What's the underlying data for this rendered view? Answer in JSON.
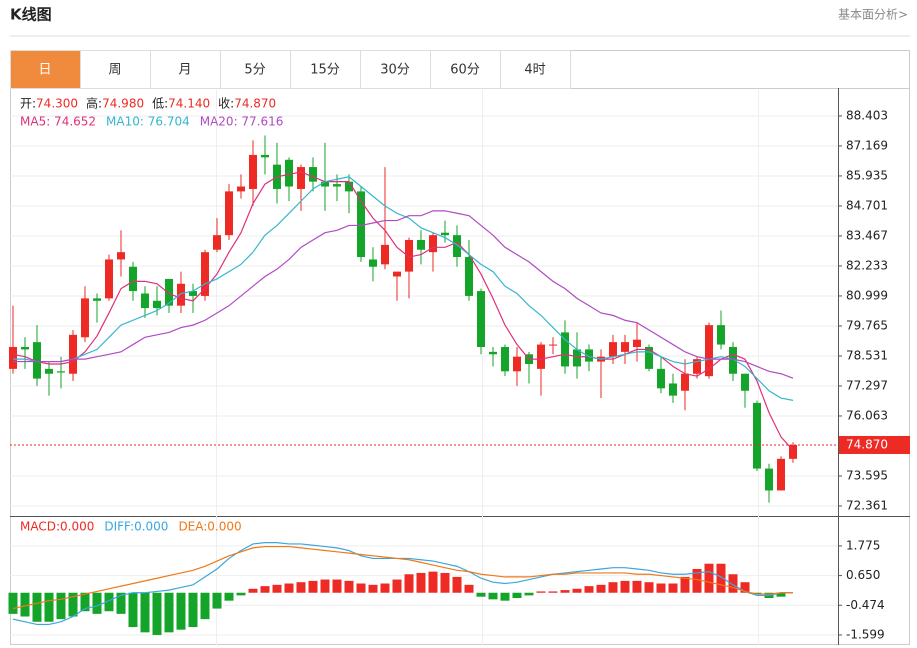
{
  "header": {
    "title": "K线图",
    "link": "基本面分析>"
  },
  "tabs": [
    "日",
    "周",
    "月",
    "5分",
    "15分",
    "30分",
    "60分",
    "4时"
  ],
  "active_tab": 0,
  "chart_data": [
    {
      "type": "candlestick",
      "ohlc_info": [
        {
          "label": "开:",
          "value": "74.300"
        },
        {
          "label": "高:",
          "value": "74.980"
        },
        {
          "label": "低:",
          "value": "74.140"
        },
        {
          "label": "收:",
          "value": "74.870"
        }
      ],
      "up_color": "#ee2a24",
      "down_color": "#14a42a",
      "open": [
        78.0,
        78.9,
        79.1,
        78.0,
        77.9,
        77.8,
        79.3,
        80.9,
        80.9,
        82.5,
        82.2,
        81.1,
        80.8,
        81.7,
        80.6,
        81.2,
        81.0,
        82.9,
        83.5,
        85.3,
        85.4,
        86.8,
        86.4,
        86.6,
        85.4,
        86.3,
        85.7,
        85.6,
        85.7,
        85.3,
        82.5,
        82.3,
        81.8,
        82.0,
        83.3,
        82.8,
        83.6,
        83.5,
        82.6,
        81.2,
        78.7,
        78.9,
        77.9,
        78.6,
        78.0,
        79.0,
        79.5,
        78.8,
        78.8,
        78.3,
        78.5,
        78.7,
        78.9,
        78.9,
        78.0,
        77.4,
        77.1,
        77.8,
        77.7,
        79.8,
        78.9,
        77.8,
        76.6,
        73.9,
        73.0,
        74.3
      ],
      "high": [
        80.6,
        79.3,
        79.8,
        78.3,
        78.5,
        79.6,
        81.4,
        81.1,
        82.7,
        83.7,
        82.4,
        81.4,
        81.4,
        81.7,
        82.0,
        81.5,
        82.9,
        84.2,
        85.6,
        86.0,
        87.4,
        87.6,
        87.3,
        86.7,
        86.4,
        86.7,
        87.3,
        86.0,
        86.0,
        85.5,
        83.0,
        86.3,
        82.0,
        83.4,
        83.7,
        83.6,
        84.1,
        83.9,
        83.3,
        81.3,
        78.9,
        79.0,
        78.9,
        78.7,
        79.1,
        79.3,
        80.0,
        79.5,
        79.0,
        78.8,
        79.4,
        79.4,
        79.9,
        79.0,
        78.5,
        77.8,
        78.4,
        78.5,
        79.9,
        80.4,
        79.1,
        77.8,
        76.7,
        74.1,
        74.4,
        74.98
      ],
      "low": [
        77.8,
        78.0,
        77.3,
        76.9,
        77.2,
        77.5,
        79.1,
        79.9,
        80.8,
        81.8,
        80.8,
        80.1,
        80.2,
        80.3,
        80.3,
        80.3,
        80.8,
        82.8,
        83.3,
        85.0,
        84.7,
        86.0,
        84.8,
        84.9,
        84.5,
        85.3,
        84.5,
        84.9,
        84.4,
        82.4,
        81.6,
        82.1,
        80.8,
        80.9,
        82.3,
        82.0,
        83.2,
        82.2,
        80.8,
        78.6,
        78.1,
        77.7,
        77.3,
        77.4,
        76.9,
        78.6,
        77.8,
        77.6,
        77.9,
        76.8,
        78.2,
        78.2,
        78.3,
        77.9,
        77.0,
        76.6,
        76.3,
        77.6,
        77.6,
        78.8,
        77.5,
        76.4,
        73.8,
        72.5,
        73.0,
        74.14
      ],
      "close": [
        78.9,
        78.8,
        77.6,
        77.8,
        77.85,
        79.4,
        80.9,
        80.8,
        82.5,
        82.8,
        81.2,
        80.5,
        80.5,
        80.6,
        81.5,
        81.0,
        82.8,
        83.5,
        85.3,
        85.5,
        86.8,
        86.7,
        85.4,
        85.5,
        86.3,
        85.7,
        85.5,
        85.5,
        85.3,
        82.6,
        82.2,
        83.1,
        82.0,
        83.3,
        82.9,
        83.5,
        83.5,
        82.6,
        81.0,
        78.9,
        78.6,
        77.9,
        78.5,
        78.2,
        79.0,
        79.0,
        78.1,
        78.1,
        78.3,
        78.5,
        79.1,
        79.1,
        79.2,
        78.0,
        77.2,
        76.9,
        77.8,
        78.4,
        79.8,
        79.0,
        77.8,
        77.1,
        73.9,
        73.0,
        74.3,
        74.87
      ],
      "series": [
        {
          "name": "MA5: 74.652",
          "color": "#e0307a",
          "values": [
            78.6,
            78.5,
            78.3,
            78.2,
            78.2,
            78.3,
            78.7,
            79.35,
            80.3,
            81.3,
            81.6,
            81.6,
            81.5,
            81.1,
            80.9,
            80.8,
            81.3,
            81.9,
            82.8,
            83.6,
            84.8,
            85.6,
            85.9,
            86.0,
            86.1,
            85.9,
            85.7,
            85.7,
            85.7,
            84.9,
            84.2,
            83.7,
            83.0,
            82.6,
            82.7,
            83.0,
            83.0,
            83.2,
            82.7,
            81.9,
            80.9,
            79.8,
            79.0,
            78.4,
            78.4,
            78.5,
            78.6,
            78.5,
            78.5,
            78.4,
            78.4,
            78.6,
            78.8,
            78.8,
            78.5,
            78.1,
            77.8,
            77.7,
            78.0,
            78.4,
            78.6,
            78.4,
            77.5,
            76.2,
            75.2,
            74.652
          ]
        },
        {
          "name": "MA10: 76.704",
          "color": "#34b6cf",
          "values": [
            78.4,
            78.4,
            78.3,
            78.3,
            78.3,
            78.4,
            78.6,
            78.8,
            79.3,
            79.8,
            80.0,
            80.2,
            80.4,
            80.7,
            81.1,
            81.2,
            81.5,
            81.7,
            82.0,
            82.3,
            82.8,
            83.5,
            83.9,
            84.4,
            84.9,
            85.4,
            85.7,
            85.8,
            85.9,
            85.5,
            85.1,
            84.7,
            84.4,
            84.2,
            83.8,
            83.6,
            83.4,
            83.1,
            82.7,
            82.3,
            82.0,
            81.4,
            81.1,
            80.6,
            80.2,
            79.7,
            79.2,
            78.8,
            78.5,
            78.4,
            78.5,
            78.6,
            78.7,
            78.7,
            78.5,
            78.3,
            78.2,
            78.3,
            78.4,
            78.5,
            78.4,
            78.1,
            77.6,
            77.1,
            76.8,
            76.704
          ]
        },
        {
          "name": "MA20: 77.616",
          "color": "#b04ac4",
          "values": [
            78.3,
            78.3,
            78.3,
            78.3,
            78.3,
            78.4,
            78.4,
            78.5,
            78.6,
            78.7,
            79.0,
            79.3,
            79.4,
            79.5,
            79.7,
            79.8,
            80.0,
            80.3,
            80.6,
            81.0,
            81.4,
            81.8,
            82.1,
            82.5,
            83.0,
            83.3,
            83.6,
            83.7,
            83.9,
            83.9,
            84.0,
            84.1,
            84.1,
            84.3,
            84.3,
            84.5,
            84.5,
            84.4,
            84.3,
            83.9,
            83.5,
            83.0,
            82.7,
            82.4,
            82.0,
            81.6,
            81.3,
            80.9,
            80.6,
            80.3,
            80.2,
            80.0,
            79.9,
            79.6,
            79.3,
            79.0,
            78.7,
            78.5,
            78.4,
            78.4,
            78.4,
            78.3,
            78.1,
            77.9,
            77.8,
            77.616
          ]
        }
      ],
      "ylim": [
        71.99,
        89.47
      ],
      "yticks": [
        72.361,
        73.595,
        76.063,
        77.297,
        78.531,
        79.765,
        80.999,
        82.233,
        83.467,
        84.701,
        85.935,
        87.169,
        88.403
      ],
      "last_price": {
        "value": 74.87,
        "label": "74.870"
      },
      "grid": true
    },
    {
      "type": "macd",
      "up_color": "#ee2a24",
      "down_color": "#14a42a",
      "histogram": {
        "name": "MACD:0.000",
        "color": "#ee2a24",
        "values": [
          -0.8,
          -0.9,
          -1.1,
          -1.1,
          -1.0,
          -0.9,
          -0.7,
          -0.8,
          -0.7,
          -0.8,
          -1.3,
          -1.5,
          -1.6,
          -1.5,
          -1.4,
          -1.3,
          -1.0,
          -0.6,
          -0.3,
          -0.1,
          0.15,
          0.25,
          0.3,
          0.35,
          0.4,
          0.45,
          0.5,
          0.5,
          0.45,
          0.35,
          0.3,
          0.35,
          0.5,
          0.7,
          0.75,
          0.8,
          0.75,
          0.6,
          0.3,
          -0.15,
          -0.25,
          -0.3,
          -0.2,
          -0.1,
          0.05,
          0.05,
          0.1,
          0.15,
          0.25,
          0.3,
          0.4,
          0.45,
          0.45,
          0.4,
          0.35,
          0.35,
          0.6,
          0.9,
          1.1,
          1.1,
          0.7,
          0.4,
          -0.05,
          -0.2,
          -0.15,
          0.0
        ]
      },
      "series": [
        {
          "name": "DIFF:0.000",
          "color": "#3aa6e0",
          "values": [
            -1.0,
            -1.1,
            -1.2,
            -1.2,
            -1.1,
            -0.9,
            -0.6,
            -0.5,
            -0.3,
            -0.1,
            0.0,
            0.0,
            0.05,
            0.1,
            0.2,
            0.3,
            0.6,
            0.9,
            1.3,
            1.6,
            1.85,
            1.9,
            1.9,
            1.85,
            1.85,
            1.8,
            1.75,
            1.7,
            1.6,
            1.4,
            1.3,
            1.3,
            1.3,
            1.3,
            1.25,
            1.2,
            1.1,
            1.0,
            0.8,
            0.55,
            0.4,
            0.35,
            0.4,
            0.5,
            0.6,
            0.7,
            0.75,
            0.8,
            0.85,
            0.9,
            0.95,
            0.95,
            0.9,
            0.85,
            0.75,
            0.7,
            0.7,
            0.75,
            0.8,
            0.6,
            0.3,
            0.05,
            -0.1,
            -0.1,
            0.0,
            0.0
          ]
        },
        {
          "name": "DEA:0.000",
          "color": "#f07818",
          "values": [
            -0.6,
            -0.5,
            -0.4,
            -0.3,
            -0.25,
            -0.15,
            -0.05,
            0.05,
            0.15,
            0.25,
            0.35,
            0.45,
            0.55,
            0.65,
            0.75,
            0.85,
            1.0,
            1.2,
            1.4,
            1.55,
            1.7,
            1.75,
            1.75,
            1.75,
            1.7,
            1.65,
            1.6,
            1.55,
            1.5,
            1.45,
            1.4,
            1.35,
            1.3,
            1.25,
            1.15,
            1.05,
            0.95,
            0.85,
            0.8,
            0.7,
            0.65,
            0.6,
            0.6,
            0.6,
            0.65,
            0.7,
            0.7,
            0.75,
            0.75,
            0.75,
            0.75,
            0.75,
            0.7,
            0.7,
            0.65,
            0.6,
            0.55,
            0.5,
            0.4,
            0.3,
            0.2,
            0.05,
            -0.05,
            -0.05,
            0.0,
            0.0
          ]
        }
      ],
      "ylim": [
        -1.98,
        2.87
      ],
      "yticks": [
        {
          "value": -1.599,
          "label": "-1.599"
        },
        {
          "value": -0.474,
          "label": "-0.474"
        },
        {
          "value": 0.65,
          "label": "0.650"
        },
        {
          "value": 1.775,
          "label": "1.775"
        }
      ],
      "grid": true
    }
  ]
}
